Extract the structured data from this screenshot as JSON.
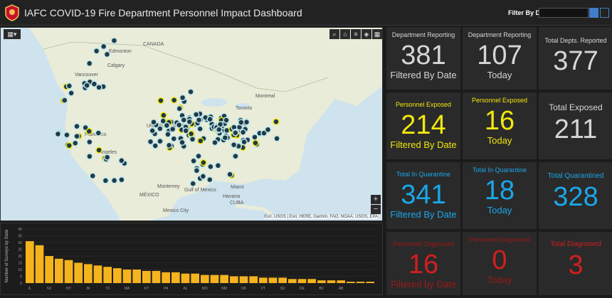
{
  "header": {
    "title": "IAFC COVID-19 Fire Department Personnel Impact Dashboard",
    "filter_label": "Filter By Date",
    "date_value": ""
  },
  "map": {
    "labels": {
      "canada": "CANADA",
      "united_states": "UNITED STATES",
      "mexico": "MÉXICO",
      "cuba": "CUBA",
      "edmonton": "Edmonton",
      "calgary": "Calgary",
      "vancouver": "Vancouver",
      "montreal": "Montreal",
      "toronto": "Toronto",
      "monterrey": "Monterrey",
      "mexico_city": "Mexico City",
      "havana": "Havana",
      "miami": "Miami",
      "gulf": "Gulf of Mexico",
      "san_francisco": "Francisco",
      "los_angeles": "Angeles"
    },
    "attribution": "Esri, USGS | Esri, HERE, Garmin, FAO, NOAA, USGS, EPA",
    "zoom_in": "+",
    "zoom_out": "−"
  },
  "chart_data": {
    "type": "bar",
    "ylabel": "Number of Surveys by State",
    "ylim": [
      0,
      40
    ],
    "yticks": [
      0,
      5,
      10,
      15,
      20,
      25,
      30,
      35,
      40
    ],
    "xticklabels": [
      "IL",
      "",
      "NJ",
      "",
      "NY",
      "",
      "IN",
      "",
      "TX",
      "",
      "MA",
      "",
      "KY",
      "",
      "PA",
      "",
      "AL",
      "",
      "MO",
      "",
      "NM",
      "",
      "OK",
      "",
      "VT",
      "",
      "SD",
      "",
      "DE",
      "",
      "BC",
      "",
      "AB",
      "",
      "",
      ""
    ],
    "values": [
      31,
      28,
      20,
      18,
      17,
      15,
      14,
      13,
      12,
      11,
      10,
      10,
      9,
      9,
      8,
      8,
      7,
      7,
      6,
      6,
      6,
      5,
      5,
      5,
      4,
      4,
      4,
      3,
      3,
      3,
      2,
      2,
      2,
      1,
      1,
      1
    ],
    "bar_color": "#f5b41e"
  },
  "tiles": [
    {
      "title": "Department Reporting",
      "number": "381",
      "sub": "Filtered By Date"
    },
    {
      "title": "Department Reporting",
      "number": "107",
      "sub": "Today"
    },
    {
      "title": "Total Depts. Reported",
      "number": "377",
      "sub": ""
    },
    {
      "title": "Personnel Exposed",
      "number": "214",
      "sub": "Filtered By Date"
    },
    {
      "title": "Personnel Exposed",
      "number": "16",
      "sub": "Today"
    },
    {
      "title": "Total Exposed",
      "number": "211",
      "sub": ""
    },
    {
      "title": "Total In Quarantine",
      "number": "341",
      "sub": "Filtered By Date"
    },
    {
      "title": "Total In Quarantine",
      "number": "18",
      "sub": "Today"
    },
    {
      "title": "Total Quarantined",
      "number": "328",
      "sub": ""
    },
    {
      "title": "Personnel Diagnosed",
      "number": "16",
      "sub": "Filtered by Date"
    },
    {
      "title": "Personnel Diagnosed",
      "number": "0",
      "sub": "Today"
    },
    {
      "title": "Total Diagnosed",
      "number": "3",
      "sub": ""
    }
  ],
  "colors": {
    "accent_blue": "#3f7ec8",
    "yellow": "#f2e70c",
    "blue": "#1aa7e8",
    "red": "#d11f1f",
    "tile_bg": "#2a2a2a"
  }
}
